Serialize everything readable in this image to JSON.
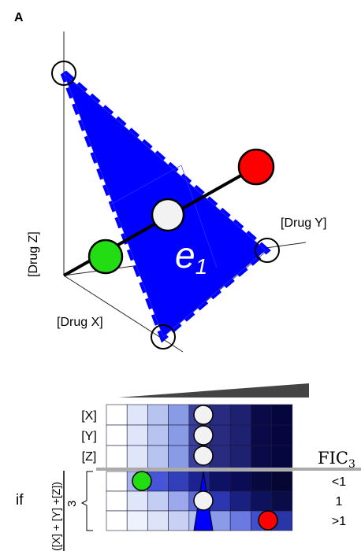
{
  "panel_label": "A",
  "top_diagram": {
    "axis_labels": {
      "z": "[Drug Z]",
      "y": "[Drug Y]",
      "x": "[Drug X]"
    },
    "plane_label": "e",
    "plane_subscript": "1",
    "plane_color": "#0000ff",
    "point_colors": {
      "green": "#22dd11",
      "red": "#ff0000",
      "center": "#f2f2f2"
    }
  },
  "bottom_diagram": {
    "row_labels": [
      "[X]",
      "[Y]",
      "[Z]"
    ],
    "fic_label": "FIC",
    "fic_subscript": "3",
    "fic_values": [
      "<1",
      "1",
      ">1"
    ],
    "if_label": "if",
    "sum_label": "([X] + [Y] +[Z])",
    "bracket_number": "3",
    "grid_colors": {
      "row0": [
        "#ffffff",
        "#dfe6fa",
        "#b8c4f0",
        "#8a9be6",
        "#3a3f9c",
        "#282b80",
        "#1e2070",
        "#0a0a48",
        "#06063e"
      ],
      "row1": [
        "#ffffff",
        "#dfe6fa",
        "#b8c4f0",
        "#8a9be6",
        "#3a3f9c",
        "#282b80",
        "#1e2070",
        "#0a0a48",
        "#06063e"
      ],
      "row2": [
        "#ffffff",
        "#dfe6fa",
        "#b8c4f0",
        "#8a9be6",
        "#3a3f9c",
        "#282b80",
        "#1e2070",
        "#0a0a48",
        "#06063e"
      ],
      "row3": [
        "#ffffff",
        "#a9b6ee",
        "#4955d8",
        "#333fb8",
        "#1c2390",
        "#0e1264",
        "#0a0d55",
        "#06083e",
        "#050632"
      ],
      "row4": [
        "#ffffff",
        "#dfe6fa",
        "#c4cdf4",
        "#9ba8ec",
        "#5d6ad8",
        "#2c36b0",
        "#1a2080",
        "#0e115c",
        "#0a0c48"
      ],
      "row5": [
        "#ffffff",
        "#eef2fc",
        "#dde4f8",
        "#c8d1f4",
        "#b5bff0",
        "#8c9be8",
        "#6b7ae0",
        "#4050cc",
        "#2a36a8"
      ]
    }
  }
}
